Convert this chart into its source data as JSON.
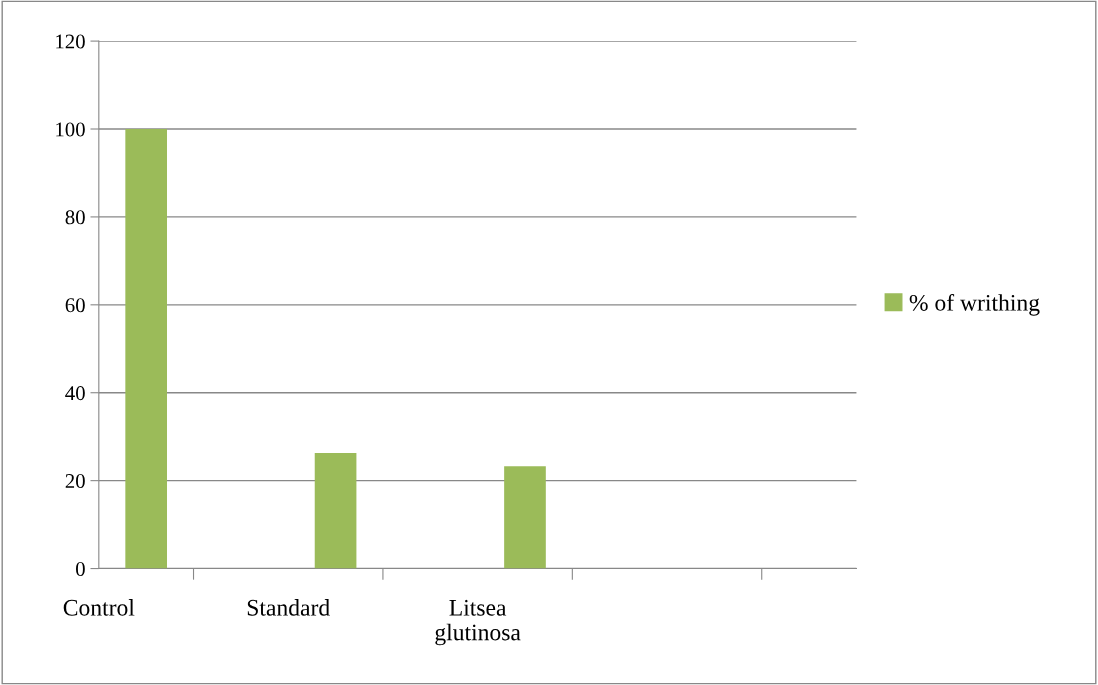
{
  "chart_data": {
    "type": "bar",
    "categories": [
      "Control",
      "Standard",
      "Litsea\nglutinosa",
      null
    ],
    "series": [
      {
        "name": "% of writhing",
        "color": "#9bbb59",
        "values": [
          100,
          26.3,
          23.3,
          null
        ]
      }
    ],
    "ylim": [
      0,
      120
    ],
    "yticks": [
      0,
      20,
      40,
      60,
      80,
      100,
      120
    ],
    "grid": "y",
    "legend": "right"
  }
}
